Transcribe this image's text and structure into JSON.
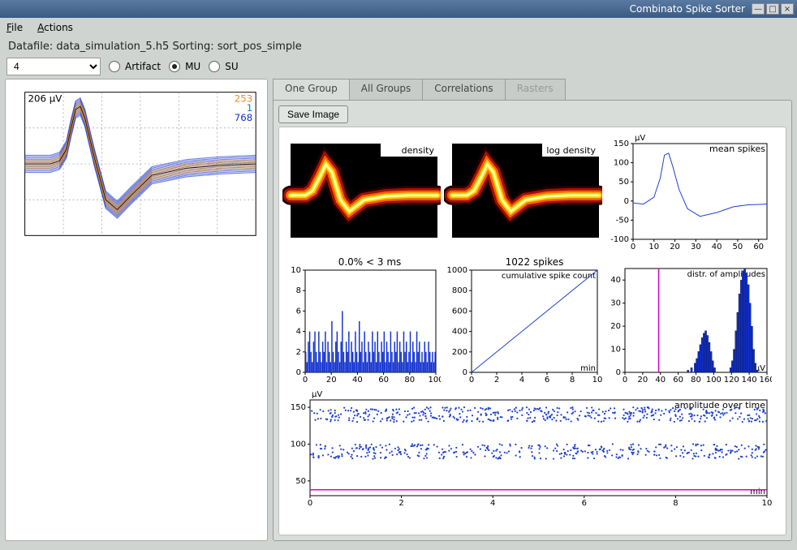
{
  "window": {
    "title": "Combinato Spike Sorter"
  },
  "menu": {
    "file": "File",
    "actions": "Actions"
  },
  "status": "Datafile: data_simulation_5.h5 Sorting: sort_pos_simple",
  "toolbar": {
    "channel_value": "4",
    "radios": {
      "artifact": "Artifact",
      "mu": "MU",
      "su": "SU",
      "selected": "mu"
    }
  },
  "tabs": {
    "one_group": "One Group",
    "all_groups": "All Groups",
    "correlations": "Correlations",
    "rasters": "Rasters",
    "active": "one_group"
  },
  "buttons": {
    "save_image": "Save Image"
  },
  "left_waveform": {
    "uV_label": "206 µV",
    "counts": {
      "orange": "253",
      "cyan": "1",
      "blue": "768"
    },
    "colors": {
      "orange": "#e69020",
      "cyan": "#0088cc",
      "blue": "#1030d0",
      "grid": "#888888"
    },
    "spike_curve": [
      [
        0,
        0.5
      ],
      [
        0.06,
        0.5
      ],
      [
        0.11,
        0.5
      ],
      [
        0.15,
        0.48
      ],
      [
        0.18,
        0.4
      ],
      [
        0.2,
        0.25
      ],
      [
        0.22,
        0.12
      ],
      [
        0.24,
        0.1
      ],
      [
        0.26,
        0.18
      ],
      [
        0.3,
        0.45
      ],
      [
        0.35,
        0.75
      ],
      [
        0.4,
        0.82
      ],
      [
        0.46,
        0.72
      ],
      [
        0.55,
        0.58
      ],
      [
        0.7,
        0.53
      ],
      [
        0.85,
        0.51
      ],
      [
        1.0,
        0.5
      ]
    ],
    "band_halfwidth_top": 0.06,
    "band_halfwidth_peak": 0.1
  },
  "plots": {
    "density": {
      "type": "heatmap",
      "title": "density",
      "bg": "#000000",
      "hot_colors": [
        "#200000",
        "#a01000",
        "#ff6000",
        "#ffd000",
        "#ffffa0"
      ],
      "curve": [
        [
          0,
          0.55
        ],
        [
          0.1,
          0.55
        ],
        [
          0.15,
          0.5
        ],
        [
          0.2,
          0.35
        ],
        [
          0.24,
          0.22
        ],
        [
          0.28,
          0.3
        ],
        [
          0.34,
          0.6
        ],
        [
          0.4,
          0.72
        ],
        [
          0.5,
          0.6
        ],
        [
          0.65,
          0.56
        ],
        [
          0.8,
          0.55
        ],
        [
          1.0,
          0.55
        ]
      ]
    },
    "log_density": {
      "type": "heatmap",
      "title": "log density",
      "bg": "#000000",
      "hot_colors": [
        "#200000",
        "#a01000",
        "#ff6000",
        "#ffd000",
        "#ffffa0"
      ],
      "curve": [
        [
          0,
          0.55
        ],
        [
          0.1,
          0.55
        ],
        [
          0.15,
          0.5
        ],
        [
          0.2,
          0.35
        ],
        [
          0.24,
          0.22
        ],
        [
          0.28,
          0.3
        ],
        [
          0.34,
          0.6
        ],
        [
          0.4,
          0.72
        ],
        [
          0.5,
          0.6
        ],
        [
          0.65,
          0.56
        ],
        [
          0.8,
          0.55
        ],
        [
          1.0,
          0.55
        ]
      ]
    },
    "mean_spikes": {
      "type": "line",
      "title": "mean spikes",
      "ylabel": "µV",
      "color": "#2040d0",
      "xlim": [
        0,
        64
      ],
      "xticks": [
        0,
        10,
        20,
        30,
        40,
        50,
        60
      ],
      "ylim": [
        -100,
        150
      ],
      "yticks": [
        -100,
        -50,
        0,
        50,
        100,
        150
      ],
      "curve": [
        [
          0,
          -5
        ],
        [
          5,
          -8
        ],
        [
          10,
          10
        ],
        [
          13,
          60
        ],
        [
          15,
          120
        ],
        [
          17,
          125
        ],
        [
          19,
          90
        ],
        [
          22,
          30
        ],
        [
          26,
          -20
        ],
        [
          32,
          -40
        ],
        [
          40,
          -30
        ],
        [
          48,
          -15
        ],
        [
          55,
          -10
        ],
        [
          64,
          -8
        ]
      ]
    },
    "isi": {
      "type": "bar",
      "title": "0.0% < 3 ms",
      "color": "#1030d0",
      "xlim": [
        0,
        100
      ],
      "xticks": [
        0,
        20,
        40,
        60,
        80,
        100
      ],
      "ylim": [
        0,
        10
      ],
      "yticks": [
        0,
        2,
        4,
        6,
        8,
        10
      ],
      "bars": [
        2,
        1,
        3,
        4,
        2,
        1,
        3,
        4,
        2,
        1,
        4,
        2,
        1,
        3,
        2,
        4,
        1,
        3,
        2,
        1,
        5,
        2,
        1,
        3,
        4,
        2,
        1,
        3,
        6,
        2,
        1,
        3,
        2,
        4,
        1,
        3,
        2,
        1,
        4,
        2,
        1,
        5,
        2,
        3,
        1,
        4,
        2,
        1,
        3,
        2,
        1,
        4,
        2,
        3,
        1,
        4,
        2,
        1,
        3,
        2,
        4,
        1,
        3,
        2,
        1,
        4,
        2,
        1,
        3,
        2,
        4,
        1,
        3,
        2,
        1,
        4,
        2,
        3,
        1,
        2,
        4,
        1,
        3,
        2,
        1,
        4,
        2,
        3,
        1,
        2,
        1,
        3,
        2,
        1,
        3,
        2,
        1,
        2,
        1,
        2
      ]
    },
    "cumulative": {
      "type": "line",
      "title": "1022 spikes",
      "subtitle": "cumulative spike count",
      "xlabel": "min",
      "color": "#2040d0",
      "xlim": [
        0,
        10
      ],
      "xticks": [
        0,
        2,
        4,
        6,
        8,
        10
      ],
      "ylim": [
        0,
        1000
      ],
      "yticks": [
        0,
        200,
        400,
        600,
        800,
        1000
      ],
      "curve": [
        [
          0,
          0
        ],
        [
          10,
          1000
        ]
      ]
    },
    "amp_dist": {
      "type": "hist",
      "title": "distr. of amplitudes",
      "xlabel": "µV",
      "color": "#1030d0",
      "vline_color": "#d000d0",
      "vline_x": 38,
      "xlim": [
        0,
        160
      ],
      "xticks": [
        0,
        20,
        40,
        60,
        80,
        100,
        120,
        140,
        160
      ],
      "ylim": [
        0,
        45
      ],
      "yticks": [
        0,
        10,
        20,
        30,
        40
      ],
      "bars": {
        "70": 1,
        "74": 2,
        "78": 4,
        "80": 6,
        "82": 9,
        "84": 12,
        "86": 15,
        "88": 17,
        "90": 18,
        "92": 16,
        "94": 13,
        "96": 9,
        "98": 5,
        "100": 2,
        "118": 2,
        "120": 5,
        "122": 10,
        "124": 18,
        "126": 26,
        "128": 34,
        "130": 40,
        "132": 44,
        "134": 45,
        "136": 43,
        "138": 38,
        "140": 30,
        "142": 20,
        "144": 10,
        "146": 4,
        "148": 1
      }
    },
    "amp_time": {
      "type": "scatter",
      "title": "amplitude over time",
      "ylabel": "µV",
      "xlabel": "min",
      "color": "#2040d0",
      "hline_color": "#d000d0",
      "hline_y": 38,
      "xlim": [
        0,
        10
      ],
      "xticks": [
        0,
        2,
        4,
        6,
        8,
        10
      ],
      "ylim": [
        30,
        160
      ],
      "yticks": [
        50,
        100,
        150
      ],
      "n_points": 900
    }
  },
  "colors": {
    "axis": "#000000",
    "bg": "#ffffff"
  }
}
